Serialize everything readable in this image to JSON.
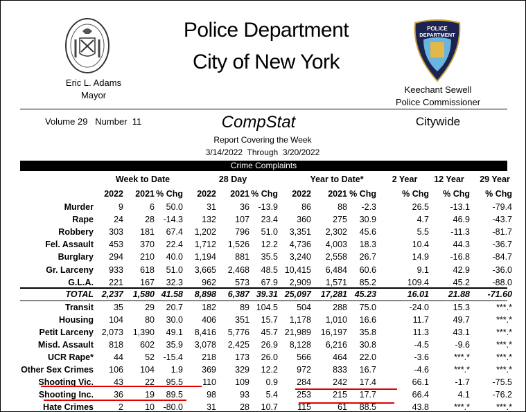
{
  "header": {
    "title_line1": "Police Department",
    "title_line2": "City of New York",
    "mayor_name": "Eric L. Adams",
    "mayor_title": "Mayor",
    "commissioner_name": "Keechant Sewell",
    "commissioner_title": "Police Commissioner",
    "badge_text": "POLICE DEPARTMENT CITY OF NEW YORK",
    "seal_text": "1625"
  },
  "report": {
    "volume": "Volume 29   Number  11",
    "name": "CompStat",
    "scope": "Citywide",
    "covering": "Report Covering the Week",
    "dates": "3/14/2022  Through  3/20/2022",
    "section": "Crime Complaints"
  },
  "table": {
    "groups": [
      "Week to Date",
      "28 Day",
      "Year to Date*",
      "2 Year",
      "12 Year",
      "29 Year"
    ],
    "columns": [
      "2022",
      "2021",
      "% Chg",
      "2022",
      "2021",
      "% Chg",
      "2022",
      "2021",
      "% Chg",
      "% Chg",
      "% Chg",
      "% Chg"
    ],
    "major_rows": [
      {
        "label": "Murder",
        "values": [
          "9",
          "6",
          "50.0",
          "31",
          "36",
          "-13.9",
          "86",
          "88",
          "-2.3",
          "26.5",
          "-13.1",
          "-79.4"
        ]
      },
      {
        "label": "Rape",
        "values": [
          "24",
          "28",
          "-14.3",
          "132",
          "107",
          "23.4",
          "360",
          "275",
          "30.9",
          "4.7",
          "46.9",
          "-43.7"
        ]
      },
      {
        "label": "Robbery",
        "values": [
          "303",
          "181",
          "67.4",
          "1,202",
          "796",
          "51.0",
          "3,351",
          "2,302",
          "45.6",
          "5.5",
          "-11.3",
          "-81.7"
        ]
      },
      {
        "label": "Fel. Assault",
        "values": [
          "453",
          "370",
          "22.4",
          "1,712",
          "1,526",
          "12.2",
          "4,736",
          "4,003",
          "18.3",
          "10.4",
          "44.3",
          "-36.7"
        ]
      },
      {
        "label": "Burglary",
        "values": [
          "294",
          "210",
          "40.0",
          "1,194",
          "881",
          "35.5",
          "3,240",
          "2,558",
          "26.7",
          "14.9",
          "-16.8",
          "-84.7"
        ]
      },
      {
        "label": "Gr. Larceny",
        "values": [
          "933",
          "618",
          "51.0",
          "3,665",
          "2,468",
          "48.5",
          "10,415",
          "6,484",
          "60.6",
          "9.1",
          "42.9",
          "-36.0"
        ]
      },
      {
        "label": "G.L.A.",
        "values": [
          "221",
          "167",
          "32.3",
          "962",
          "573",
          "67.9",
          "2,909",
          "1,571",
          "85.2",
          "109.4",
          "45.2",
          "-88.0"
        ]
      }
    ],
    "total": {
      "label": "TOTAL",
      "values": [
        "2,237",
        "1,580",
        "41.58",
        "8,898",
        "6,387",
        "39.31",
        "25,097",
        "17,281",
        "45.23",
        "16.01",
        "21.88",
        "-71.60"
      ]
    },
    "other_rows": [
      {
        "label": "Transit",
        "values": [
          "35",
          "29",
          "20.7",
          "182",
          "89",
          "104.5",
          "504",
          "288",
          "75.0",
          "-24.0",
          "15.3",
          "***.*"
        ]
      },
      {
        "label": "Housing",
        "values": [
          "104",
          "80",
          "30.0",
          "406",
          "351",
          "15.7",
          "1,178",
          "1,010",
          "16.6",
          "11.7",
          "49.7",
          "***.*"
        ]
      },
      {
        "label": "Petit Larceny",
        "values": [
          "2,073",
          "1,390",
          "49.1",
          "8,416",
          "5,776",
          "45.7",
          "21,989",
          "16,197",
          "35.8",
          "11.3",
          "43.1",
          "***.*"
        ]
      },
      {
        "label": "Misd. Assault",
        "values": [
          "818",
          "602",
          "35.9",
          "3,078",
          "2,425",
          "26.9",
          "8,128",
          "6,216",
          "30.8",
          "-4.5",
          "-9.6",
          "***.*"
        ]
      },
      {
        "label": "UCR Rape*",
        "values": [
          "44",
          "52",
          "-15.4",
          "218",
          "173",
          "26.0",
          "566",
          "464",
          "22.0",
          "-3.6",
          "***.*",
          "***.*"
        ]
      },
      {
        "label": "Other Sex Crimes",
        "values": [
          "106",
          "104",
          "1.9",
          "369",
          "329",
          "12.2",
          "972",
          "833",
          "16.7",
          "-4.6",
          "***.*",
          "***.*"
        ]
      },
      {
        "label": "Shooting Vic.",
        "values": [
          "43",
          "22",
          "95.5",
          "110",
          "109",
          "0.9",
          "284",
          "242",
          "17.4",
          "66.1",
          "-1.7",
          "-75.5"
        ]
      },
      {
        "label": "Shooting Inc.",
        "values": [
          "36",
          "19",
          "89.5",
          "98",
          "93",
          "5.4",
          "253",
          "215",
          "17.7",
          "66.4",
          "4.1",
          "-76.2"
        ]
      },
      {
        "label": "Hate Crimes",
        "values": [
          "2",
          "10",
          "-80.0",
          "31",
          "28",
          "10.7",
          "115",
          "61",
          "88.5",
          "43.8",
          "***.*",
          "***.*"
        ]
      }
    ]
  },
  "colors": {
    "highlight": "#e00000"
  }
}
